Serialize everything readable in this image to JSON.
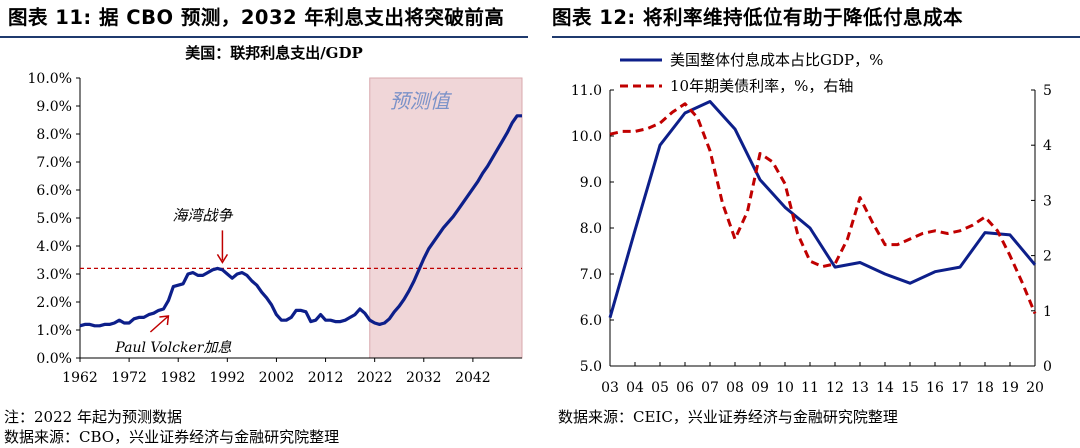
{
  "left_figure": {
    "heading": "图表 11: 据 CBO 预测，2032 年利息支出将突破前高",
    "note": "注：2022 年起为预测数据",
    "source": "数据来源：CBO，兴业证券经济与金融研究院整理"
  },
  "right_figure": {
    "heading": "图表 12: 将利率维持低位有助于降低付息成本",
    "source": "数据来源：CEIC，兴业证券经济与金融研究院整理"
  },
  "colors": {
    "navy": "#0d1f8a",
    "red": "#c00000",
    "forecast_band": "#f0d6d8",
    "header_rule": "#1f3a6e"
  },
  "chart_data": [
    {
      "type": "line",
      "title": "美国：联邦利息支出/GDP",
      "xlabel": "",
      "ylabel": "",
      "xlim": [
        1962,
        2052
      ],
      "ylim": [
        0,
        10
      ],
      "y_ticks": [
        "0.0%",
        "1.0%",
        "2.0%",
        "3.0%",
        "4.0%",
        "5.0%",
        "6.0%",
        "7.0%",
        "8.0%",
        "9.0%",
        "10.0%"
      ],
      "x_ticks": [
        "1962",
        "1972",
        "1982",
        "1992",
        "2002",
        "2012",
        "2022",
        "2032",
        "2042"
      ],
      "forecast_start": 2021,
      "forecast_label": "预测值",
      "reference_line": 3.2,
      "annotations": [
        {
          "text": "海湾战争",
          "x": 1991,
          "y": 3.2
        },
        {
          "text": "Paul Volcker加息",
          "x": 1980,
          "y": 1.5
        }
      ],
      "series": [
        {
          "x": [
            1962,
            1963,
            1964,
            1965,
            1966,
            1967,
            1968,
            1969,
            1970,
            1971,
            1972,
            1973,
            1974,
            1975,
            1976,
            1977,
            1978,
            1979,
            1980,
            1981,
            1982,
            1983,
            1984,
            1985,
            1986,
            1987,
            1988,
            1989,
            1990,
            1991,
            1992,
            1993,
            1994,
            1995,
            1996,
            1997,
            1998,
            1999,
            2000,
            2001,
            2002,
            2003,
            2004,
            2005,
            2006,
            2007,
            2008,
            2009,
            2010,
            2011,
            2012,
            2013,
            2014,
            2015,
            2016,
            2017,
            2018,
            2019,
            2020,
            2021,
            2022,
            2023,
            2024,
            2025,
            2026,
            2027,
            2028,
            2029,
            2030,
            2031,
            2032,
            2033,
            2034,
            2035,
            2036,
            2037,
            2038,
            2039,
            2040,
            2041,
            2042,
            2043,
            2044,
            2045,
            2046,
            2047,
            2048,
            2049,
            2050,
            2051,
            2052
          ],
          "values": [
            1.15,
            1.2,
            1.2,
            1.15,
            1.15,
            1.2,
            1.2,
            1.25,
            1.35,
            1.25,
            1.25,
            1.4,
            1.45,
            1.45,
            1.55,
            1.6,
            1.7,
            1.75,
            2.05,
            2.55,
            2.6,
            2.65,
            3.0,
            3.05,
            2.95,
            2.95,
            3.05,
            3.15,
            3.2,
            3.15,
            3.0,
            2.85,
            3.0,
            3.05,
            2.95,
            2.75,
            2.6,
            2.35,
            2.15,
            1.9,
            1.55,
            1.35,
            1.35,
            1.45,
            1.7,
            1.7,
            1.65,
            1.3,
            1.35,
            1.55,
            1.35,
            1.35,
            1.3,
            1.3,
            1.35,
            1.45,
            1.55,
            1.75,
            1.6,
            1.35,
            1.25,
            1.2,
            1.25,
            1.4,
            1.65,
            1.85,
            2.1,
            2.4,
            2.75,
            3.15,
            3.55,
            3.9,
            4.15,
            4.4,
            4.65,
            4.85,
            5.05,
            5.3,
            5.55,
            5.8,
            6.05,
            6.3,
            6.6,
            6.85,
            7.15,
            7.45,
            7.75,
            8.05,
            8.4,
            8.65,
            8.65
          ]
        }
      ]
    },
    {
      "type": "line",
      "title": "",
      "xlabel": "",
      "ylabel": "",
      "categories": [
        "03",
        "04",
        "05",
        "06",
        "07",
        "08",
        "09",
        "10",
        "11",
        "12",
        "13",
        "14",
        "15",
        "16",
        "17",
        "18",
        "19",
        "20"
      ],
      "y_left": {
        "lim": [
          5.0,
          11.0
        ],
        "ticks": [
          "5.0",
          "6.0",
          "7.0",
          "8.0",
          "9.0",
          "10.0",
          "11.0"
        ]
      },
      "y_right": {
        "lim": [
          0,
          5
        ],
        "ticks": [
          "0",
          "1",
          "2",
          "3",
          "4",
          "5"
        ]
      },
      "legend_position": "top",
      "series": [
        {
          "name": "美国整体付息成本占比GDP，%",
          "axis": "left",
          "style": "solid",
          "x": [
            2003,
            2004,
            2005,
            2006,
            2007,
            2008,
            2009,
            2010,
            2011,
            2012,
            2013,
            2014,
            2015,
            2016,
            2017,
            2018,
            2019,
            2020
          ],
          "values": [
            6.05,
            7.95,
            9.8,
            10.5,
            10.75,
            10.15,
            9.05,
            8.45,
            8.0,
            7.15,
            7.25,
            7.0,
            6.8,
            7.05,
            7.15,
            7.9,
            7.85,
            7.2
          ]
        },
        {
          "name": "10年期美债利率，%，右轴",
          "axis": "right",
          "style": "dashed",
          "x": [
            2003,
            2003.5,
            2004,
            2004.5,
            2005,
            2005.5,
            2006,
            2006.5,
            2007,
            2007.5,
            2008,
            2008.5,
            2009,
            2009.5,
            2010,
            2010.5,
            2011,
            2011.5,
            2012,
            2012.5,
            2013,
            2013.5,
            2014,
            2014.5,
            2015,
            2015.5,
            2016,
            2016.5,
            2017,
            2017.5,
            2018,
            2018.5,
            2019,
            2019.5,
            2020
          ],
          "values": [
            4.2,
            4.25,
            4.25,
            4.3,
            4.4,
            4.6,
            4.75,
            4.5,
            3.9,
            2.95,
            2.3,
            2.8,
            3.85,
            3.7,
            3.3,
            2.4,
            1.9,
            1.8,
            1.85,
            2.3,
            3.05,
            2.6,
            2.2,
            2.2,
            2.3,
            2.4,
            2.45,
            2.4,
            2.45,
            2.55,
            2.7,
            2.45,
            2.0,
            1.5,
            0.95
          ]
        }
      ]
    }
  ]
}
